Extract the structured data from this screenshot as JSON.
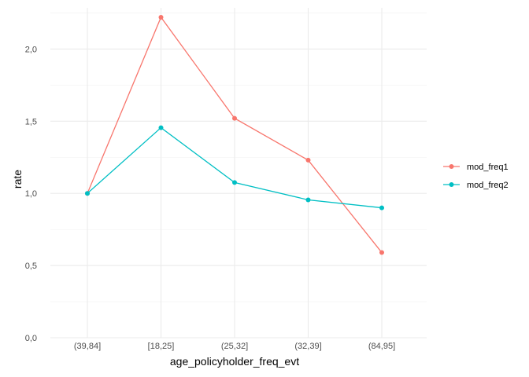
{
  "chart_data": {
    "type": "line",
    "categories": [
      "(39,84]",
      "[18,25]",
      "(25,32]",
      "(32,39]",
      "(84,95]"
    ],
    "series": [
      {
        "name": "mod_freq1",
        "color": "#F8766D",
        "values": [
          1.0,
          2.22,
          1.52,
          1.23,
          0.59
        ]
      },
      {
        "name": "mod_freq2",
        "color": "#00BFC4",
        "values": [
          1.0,
          1.455,
          1.075,
          0.955,
          0.9
        ]
      }
    ],
    "xlabel": "age_policyholder_freq_evt",
    "ylabel": "rate",
    "yticks": [
      0.0,
      0.5,
      1.0,
      1.5,
      2.0
    ],
    "ytick_labels": [
      "0,0",
      "0,5",
      "1,0",
      "1,5",
      "2,0"
    ],
    "ylim": [
      0,
      2.27
    ],
    "grid": true,
    "legend": "right"
  }
}
